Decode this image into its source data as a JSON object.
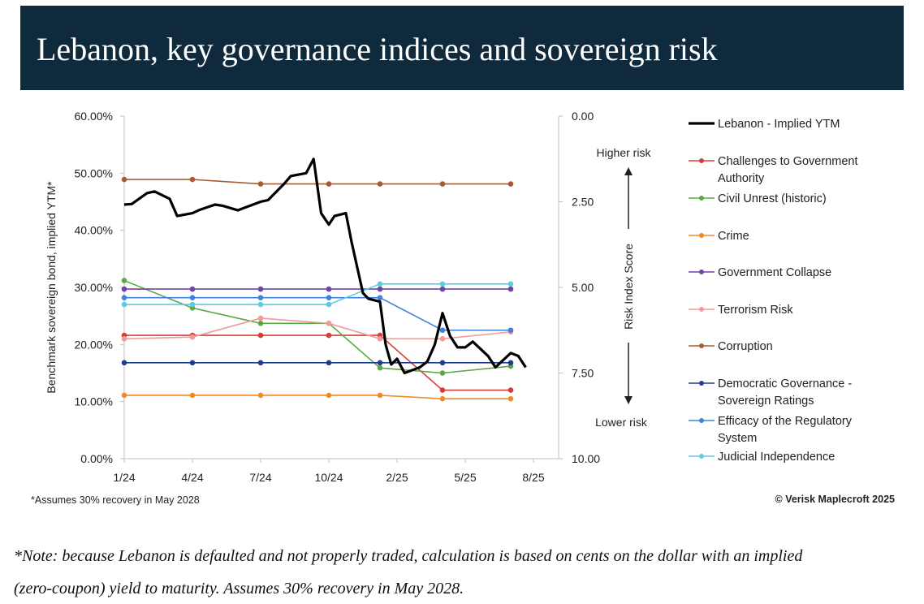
{
  "title": "Lebanon, key governance indices and sovereign risk",
  "note_line1": "*Note: because Lebanon is defaulted and not properly traded, calculation is based on cents on the dollar with an implied",
  "note_line2": "(zero-coupon) yield to maturity. Assumes 30% recovery in May 2028.",
  "chart_data": {
    "type": "line",
    "x_ticks": [
      "1/24",
      "4/24",
      "7/24",
      "10/24",
      "2/25",
      "5/25",
      "8/25"
    ],
    "left_axis": {
      "label": "Benchmark sovereign bond, implied YTM*",
      "range": [
        0,
        60
      ],
      "ticks": [
        "0.00%",
        "10.00%",
        "20.00%",
        "30.00%",
        "40.00%",
        "50.00%",
        "60.00%"
      ]
    },
    "right_axis": {
      "label": "Risk Index Score",
      "range": [
        0,
        10
      ],
      "inverted": true,
      "ticks": [
        "0.00",
        "2.50",
        "5.00",
        "7.50",
        "10.00"
      ]
    },
    "higher_risk_label": "Higher risk",
    "lower_risk_label": "Lower risk",
    "footnote": "*Assumes 30% recovery in May 2028",
    "source": "© Verisk Maplecroft 2025",
    "ytm_series": {
      "name": "Lebanon - Implied YTM",
      "color": "#000000",
      "points": [
        [
          "1/24",
          44.5
        ],
        [
          "1/24+",
          44.6
        ],
        [
          "2/24",
          46.5
        ],
        [
          "2/24+",
          46.8
        ],
        [
          "3/24",
          45.5
        ],
        [
          "3/24+",
          42.5
        ],
        [
          "4/24",
          43.0
        ],
        [
          "4/24+",
          43.6
        ],
        [
          "5/24",
          44.5
        ],
        [
          "5/24+",
          44.3
        ],
        [
          "6/24",
          43.5
        ],
        [
          "6/24+",
          44.0
        ],
        [
          "7/24",
          45.0
        ],
        [
          "7/24+",
          45.3
        ],
        [
          "8/24",
          48.0
        ],
        [
          "8/24+",
          49.5
        ],
        [
          "9/24",
          50.0
        ],
        [
          "9/24+",
          52.5
        ],
        [
          "9/24++",
          43.0
        ],
        [
          "10/24",
          41.0
        ],
        [
          "10/24+",
          42.5
        ],
        [
          "11/24",
          43.0
        ],
        [
          "11/24+",
          38.0
        ],
        [
          "12/24",
          29.0
        ],
        [
          "12/24+",
          28.0
        ],
        [
          "1/25",
          27.5
        ],
        [
          "1/25+",
          20.0
        ],
        [
          "1/25++",
          16.5
        ],
        [
          "2/25",
          17.5
        ],
        [
          "2/25+",
          15.0
        ],
        [
          "3/25",
          16.0
        ],
        [
          "3/25+",
          17.0
        ],
        [
          "3/25++",
          20.0
        ],
        [
          "4/25",
          25.5
        ],
        [
          "4/25+",
          21.5
        ],
        [
          "4/25++",
          19.5
        ],
        [
          "5/25",
          19.5
        ],
        [
          "5/25+",
          20.5
        ],
        [
          "6/25",
          18.0
        ],
        [
          "6/25+",
          16.0
        ],
        [
          "7/25",
          18.5
        ],
        [
          "7/25+",
          18.0
        ],
        [
          "7/25++",
          16.0
        ]
      ]
    },
    "series": [
      {
        "name": "Challenges to Government Authority",
        "color": "#d93c36",
        "x": [
          "1/24",
          "4/24",
          "7/24",
          "10/24",
          "1/25",
          "4/25",
          "7/25"
        ],
        "values": [
          6.4,
          6.4,
          6.4,
          6.4,
          6.4,
          8.0,
          8.0
        ]
      },
      {
        "name": "Civil Unrest (historic)",
        "color": "#5aa844",
        "x": [
          "1/24",
          "4/24",
          "7/24",
          "10/24",
          "1/25",
          "4/25",
          "7/25"
        ],
        "values": [
          4.8,
          5.6,
          6.05,
          6.05,
          7.35,
          7.5,
          7.3
        ]
      },
      {
        "name": "Crime",
        "color": "#ef8a2a",
        "x": [
          "1/24",
          "4/24",
          "7/24",
          "10/24",
          "1/25",
          "4/25",
          "7/25"
        ],
        "values": [
          8.15,
          8.15,
          8.15,
          8.15,
          8.15,
          8.25,
          8.25
        ]
      },
      {
        "name": "Government Collapse",
        "color": "#6e46a6",
        "x": [
          "1/24",
          "4/24",
          "7/24",
          "10/24",
          "1/25",
          "4/25",
          "7/25"
        ],
        "values": [
          5.05,
          5.05,
          5.05,
          5.05,
          5.05,
          5.05,
          5.05
        ]
      },
      {
        "name": "Terrorism Risk",
        "color": "#f29a9a",
        "x": [
          "1/24",
          "4/24",
          "7/24",
          "10/24",
          "1/25",
          "4/25",
          "7/25"
        ],
        "values": [
          6.5,
          6.45,
          5.9,
          6.05,
          6.5,
          6.5,
          6.3
        ]
      },
      {
        "name": "Corruption",
        "color": "#a55d35",
        "x": [
          "1/24",
          "4/24",
          "7/24",
          "10/24",
          "1/25",
          "4/25",
          "7/25"
        ],
        "values": [
          1.85,
          1.85,
          1.98,
          1.98,
          1.98,
          1.98,
          1.98
        ]
      },
      {
        "name": "Democratic Governance - Sovereign Ratings",
        "color": "#1c3f8f",
        "x": [
          "1/24",
          "4/24",
          "7/24",
          "10/24",
          "1/25",
          "4/25",
          "7/25"
        ],
        "values": [
          7.2,
          7.2,
          7.2,
          7.2,
          7.2,
          7.2,
          7.2
        ]
      },
      {
        "name": "Efficacy of the Regulatory System",
        "color": "#3f82d9",
        "x": [
          "1/24",
          "4/24",
          "7/24",
          "10/24",
          "1/25",
          "4/25",
          "7/25"
        ],
        "values": [
          5.3,
          5.3,
          5.3,
          5.3,
          5.3,
          6.25,
          6.25
        ]
      },
      {
        "name": "Judicial Independence",
        "color": "#5fcbe0",
        "x": [
          "1/24",
          "4/24",
          "7/24",
          "10/24",
          "1/25",
          "4/25",
          "7/25"
        ],
        "values": [
          5.5,
          5.5,
          5.5,
          5.5,
          4.9,
          4.9,
          4.9
        ]
      }
    ]
  }
}
